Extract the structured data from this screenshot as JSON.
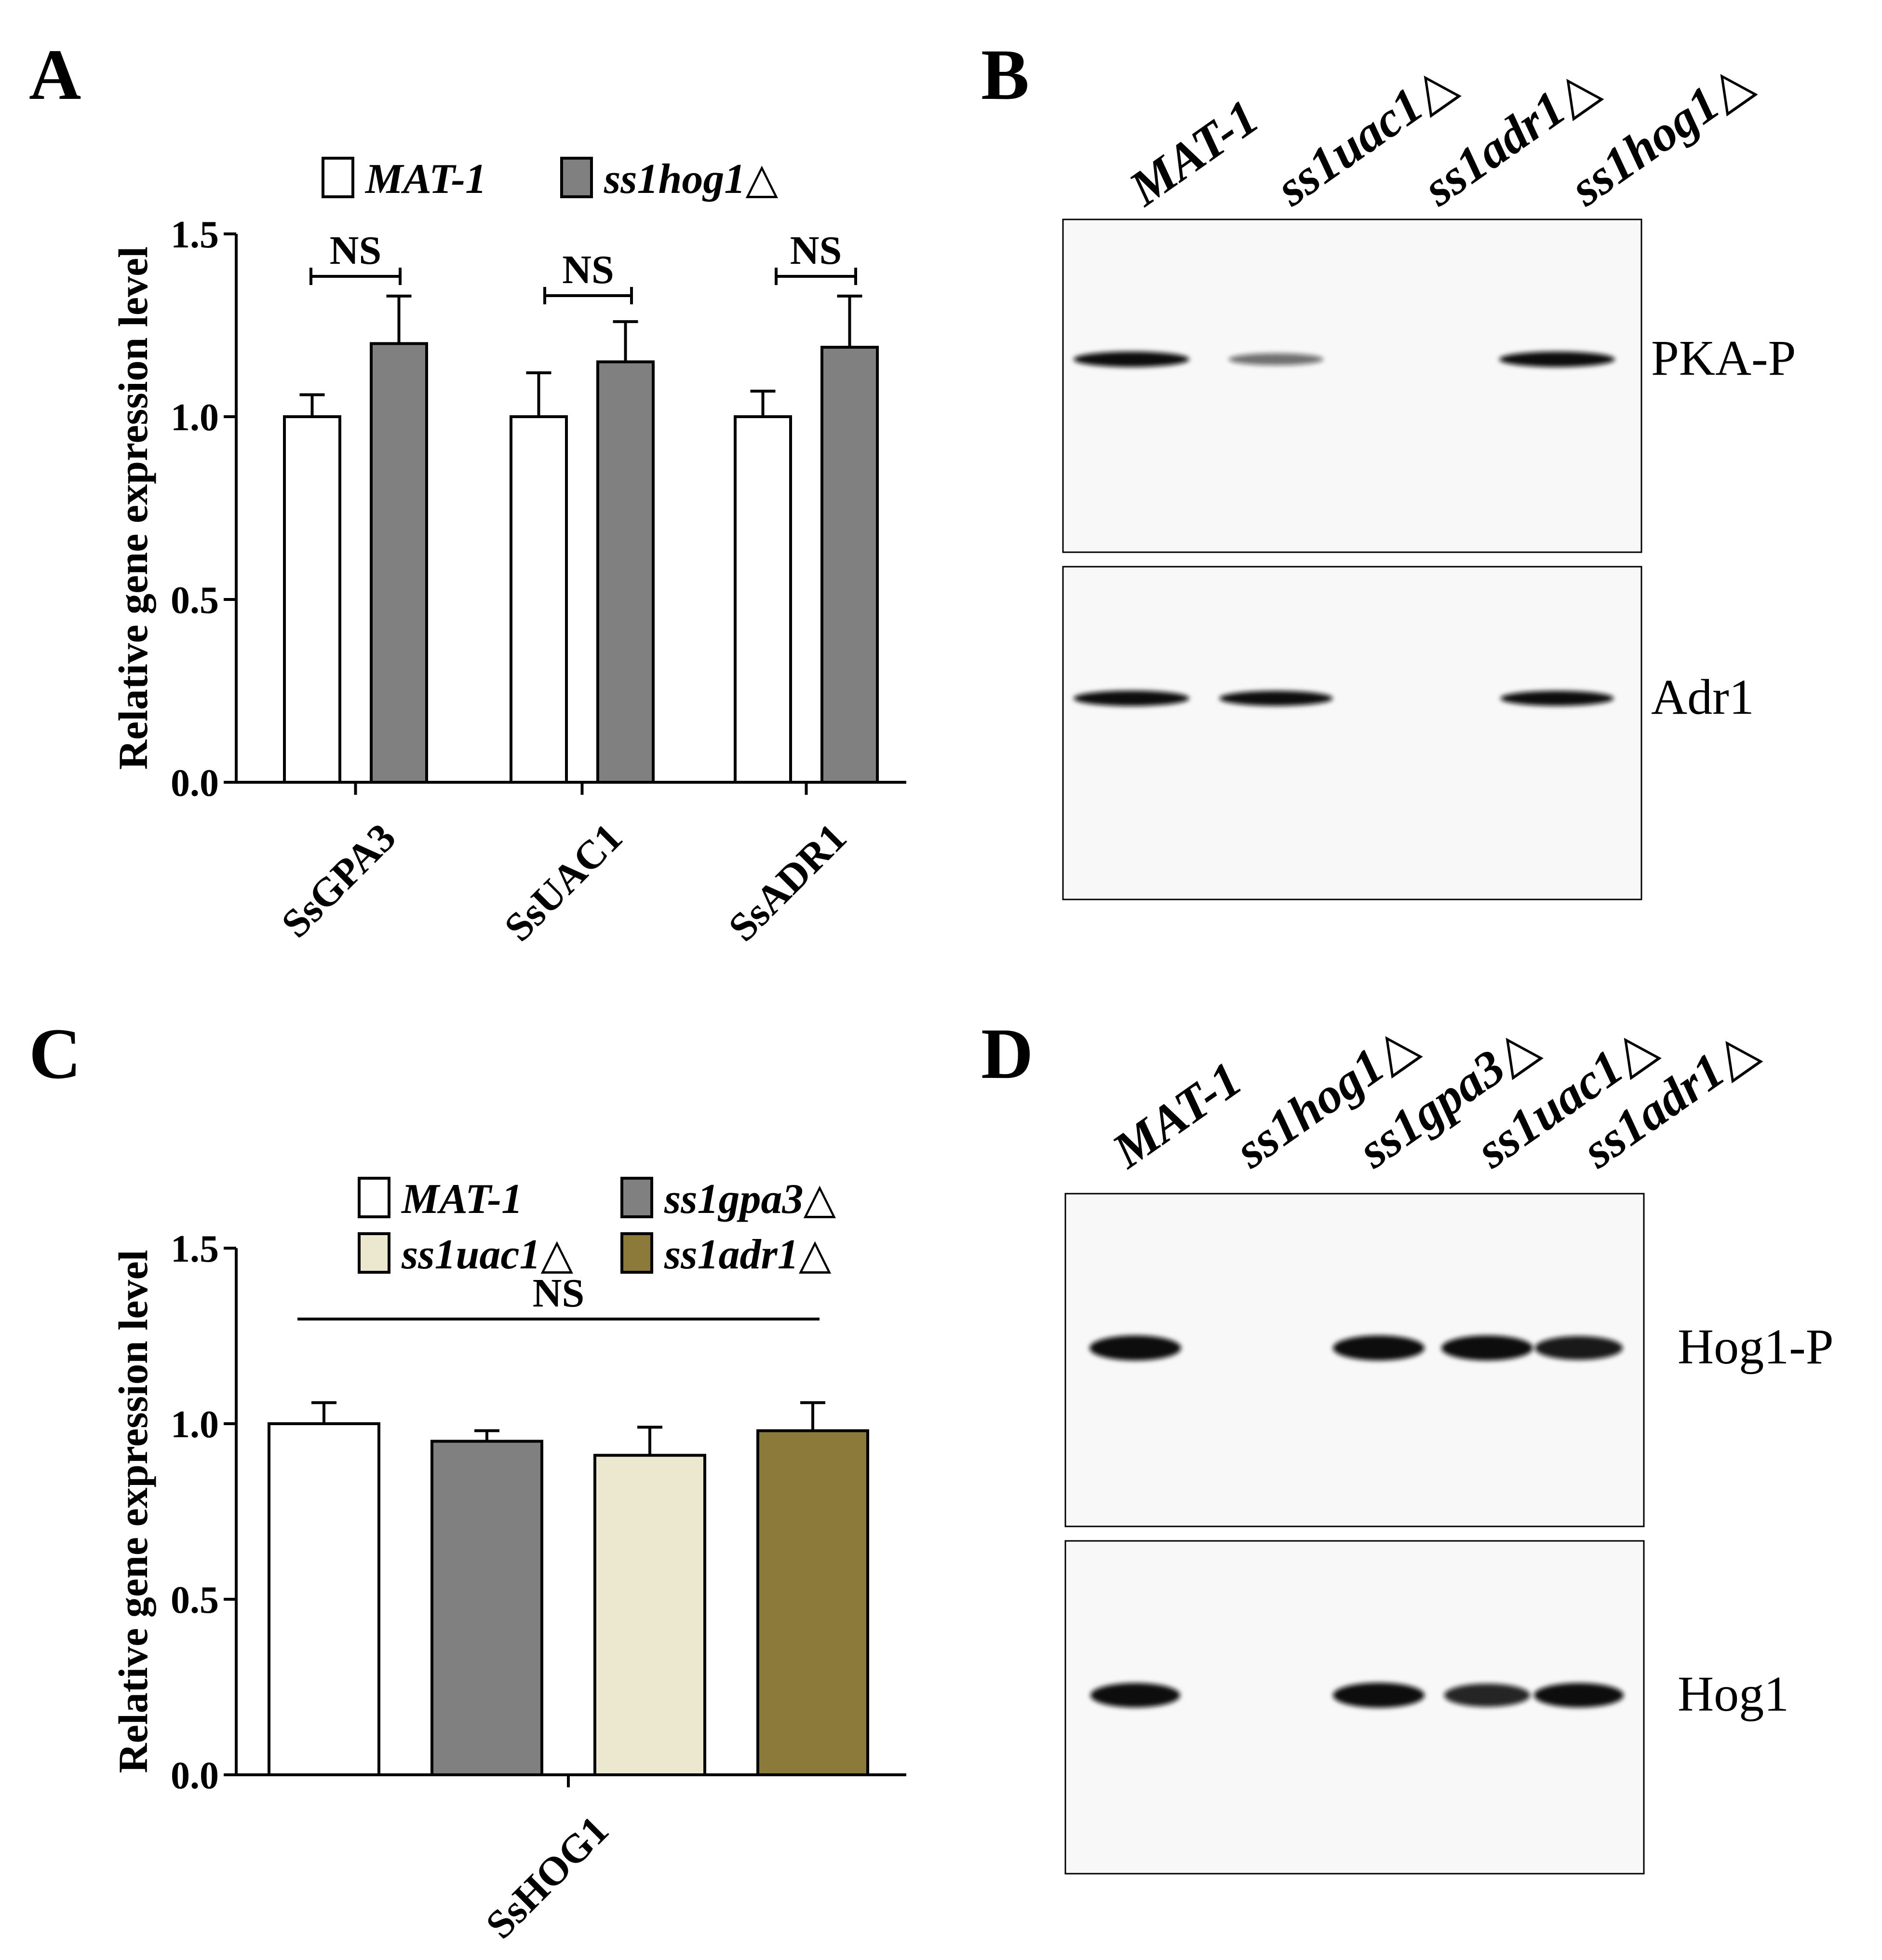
{
  "panels": {
    "A": {
      "letter": "A"
    },
    "B": {
      "letter": "B"
    },
    "C": {
      "letter": "C"
    },
    "D": {
      "letter": "D"
    }
  },
  "chart_data": [
    {
      "panel": "A",
      "type": "bar",
      "ylabel": "Relative gene expression level",
      "ylim": [
        0,
        1.5
      ],
      "yticks": [
        "0.0",
        "0.5",
        "1.0",
        "1.5"
      ],
      "categories": [
        "SsGPA3",
        "SsUAC1",
        "SsADR1"
      ],
      "series": [
        {
          "name": "MAT-1",
          "color": "#ffffff",
          "values": [
            1.0,
            1.0,
            1.0
          ],
          "errors": [
            0.06,
            0.12,
            0.07
          ]
        },
        {
          "name": "ss1hog1△",
          "color": "#808080",
          "values": [
            1.2,
            1.15,
            1.19
          ],
          "errors": [
            0.13,
            0.11,
            0.14
          ]
        }
      ],
      "annotations": [
        "NS",
        "NS",
        "NS"
      ],
      "legend": "top"
    },
    {
      "panel": "C",
      "type": "bar",
      "ylabel": "Relative gene expression level",
      "ylim": [
        0,
        1.5
      ],
      "yticks": [
        "0.0",
        "0.5",
        "1.0",
        "1.5"
      ],
      "categories": [
        "SsHOG1"
      ],
      "series": [
        {
          "name": "MAT-1",
          "color": "#ffffff",
          "values": [
            1.0
          ],
          "errors": [
            0.06
          ]
        },
        {
          "name": "ss1gpa3△",
          "color": "#808080",
          "values": [
            0.95
          ],
          "errors": [
            0.03
          ]
        },
        {
          "name": "ss1uac1△",
          "color": "#ece7cf",
          "values": [
            0.91
          ],
          "errors": [
            0.08
          ]
        },
        {
          "name": "ss1adr1△",
          "color": "#8b7a3a",
          "values": [
            0.98
          ],
          "errors": [
            0.08
          ]
        }
      ],
      "annotations": [
        "NS"
      ],
      "legend": "top"
    }
  ],
  "blots": {
    "B": {
      "lanes": [
        "MAT-1",
        "ss1uac1△",
        "ss1adr1△",
        "ss1hog1△"
      ],
      "rows": [
        {
          "label": "PKA-P",
          "band_intensity": [
            1.0,
            0.55,
            0.0,
            1.0
          ]
        },
        {
          "label": "Adr1",
          "band_intensity": [
            1.0,
            0.95,
            0.0,
            0.95
          ]
        }
      ]
    },
    "D": {
      "lanes": [
        "MAT-1",
        "ss1hog1△",
        "ss1gpa3△",
        "ss1uac1△",
        "ss1adr1△"
      ],
      "rows": [
        {
          "label": "Hog1-P",
          "band_intensity": [
            1.0,
            0.0,
            1.0,
            1.0,
            0.9
          ]
        },
        {
          "label": "Hog1",
          "band_intensity": [
            0.95,
            0.0,
            1.0,
            0.85,
            0.95
          ]
        }
      ]
    }
  }
}
